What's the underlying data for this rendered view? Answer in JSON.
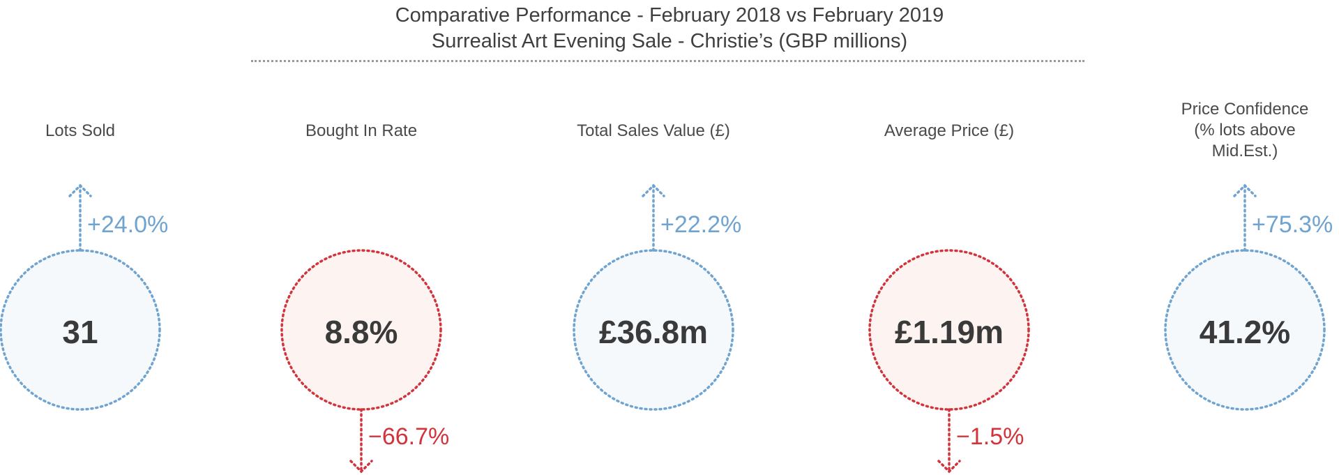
{
  "chart_data": {
    "type": "kpi-comparison",
    "title": "Comparative Performance - February 2018 vs February 2019",
    "subtitle": "Surrealist Art Evening Sale - Christie’s (GBP millions)",
    "colors": {
      "up": "#6fa3d0",
      "up_fill": "#f6f9fc",
      "down": "#d2343c",
      "down_fill": "#fdf4f2"
    },
    "metrics": [
      {
        "label_lines": [
          "Lots Sold"
        ],
        "value": "31",
        "change": "+24.0%",
        "change_pct": 24.0,
        "direction": "up"
      },
      {
        "label_lines": [
          "Bought In Rate"
        ],
        "value": "8.8%",
        "change": "−66.7%",
        "change_pct": -66.7,
        "direction": "down"
      },
      {
        "label_lines": [
          "Total Sales Value (£)"
        ],
        "value": "£36.8m",
        "change": "+22.2%",
        "change_pct": 22.2,
        "direction": "up"
      },
      {
        "label_lines": [
          "Average Price (£)"
        ],
        "value": "£1.19m",
        "change": "−1.5%",
        "change_pct": -1.5,
        "direction": "down"
      },
      {
        "label_lines": [
          "Price Confidence",
          "(% lots above Mid.Est.)"
        ],
        "value": "41.2%",
        "change": "+75.3%",
        "change_pct": 75.3,
        "direction": "up"
      }
    ]
  }
}
